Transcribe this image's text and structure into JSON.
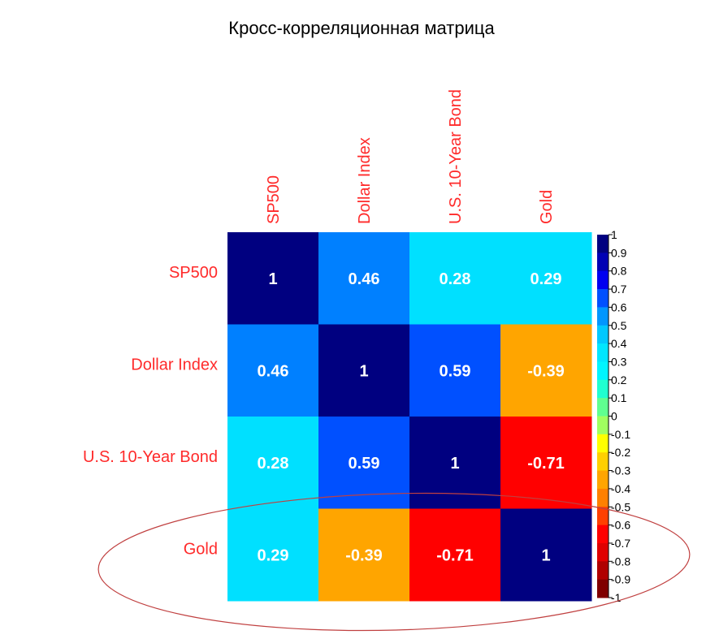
{
  "chart_data": {
    "type": "heatmap",
    "title": "Кросс-корреляционная матрица",
    "x_categories": [
      "SP500",
      "Dollar Index",
      "U.S. 10-Year Bond",
      "Gold"
    ],
    "y_categories": [
      "SP500",
      "Dollar Index",
      "U.S. 10-Year Bond",
      "Gold"
    ],
    "values": [
      [
        1,
        0.46,
        0.28,
        0.29
      ],
      [
        0.46,
        1,
        0.59,
        -0.39
      ],
      [
        0.28,
        0.59,
        1,
        -0.71
      ],
      [
        0.29,
        -0.39,
        -0.71,
        1
      ]
    ],
    "value_labels": [
      [
        "1",
        "0.46",
        "0.28",
        "0.29"
      ],
      [
        "0.46",
        "1",
        "0.59",
        "-0.39"
      ],
      [
        "0.28",
        "0.59",
        "1",
        "-0.71"
      ],
      [
        "0.29",
        "-0.39",
        "-0.71",
        "1"
      ]
    ],
    "colorbar": {
      "range": [
        -1,
        1
      ],
      "ticks": [
        "1",
        "0.9",
        "0.8",
        "0.7",
        "0.6",
        "0.5",
        "0.4",
        "0.3",
        "0.2",
        "0.1",
        "0",
        "-0.1",
        "-0.2",
        "-0.3",
        "-0.4",
        "-0.5",
        "-0.6",
        "-0.7",
        "-0.8",
        "-0.9",
        "-1"
      ],
      "colors_top_to_bottom": [
        "#000080",
        "#0000b4",
        "#0000f0",
        "#0050ff",
        "#0096ff",
        "#00c8ff",
        "#00e6ff",
        "#00f5ff",
        "#20ffd0",
        "#60ff90",
        "#a0ff60",
        "#ffff00",
        "#ffd000",
        "#ffa500",
        "#ff8000",
        "#ff4000",
        "#ff0000",
        "#e00000",
        "#b00000",
        "#800000"
      ]
    },
    "cell_colors": [
      [
        "#000080",
        "#0080ff",
        "#00e0ff",
        "#00e0ff"
      ],
      [
        "#0080ff",
        "#000080",
        "#0050ff",
        "#ffa500"
      ],
      [
        "#00e0ff",
        "#0050ff",
        "#000080",
        "#ff0000"
      ],
      [
        "#00e0ff",
        "#ffa500",
        "#ff0000",
        "#000080"
      ]
    ],
    "axis_label_color": "#ff2a2a",
    "annotation": {
      "shape": "ellipse",
      "color": "#c04040",
      "target_row": "Gold"
    }
  }
}
